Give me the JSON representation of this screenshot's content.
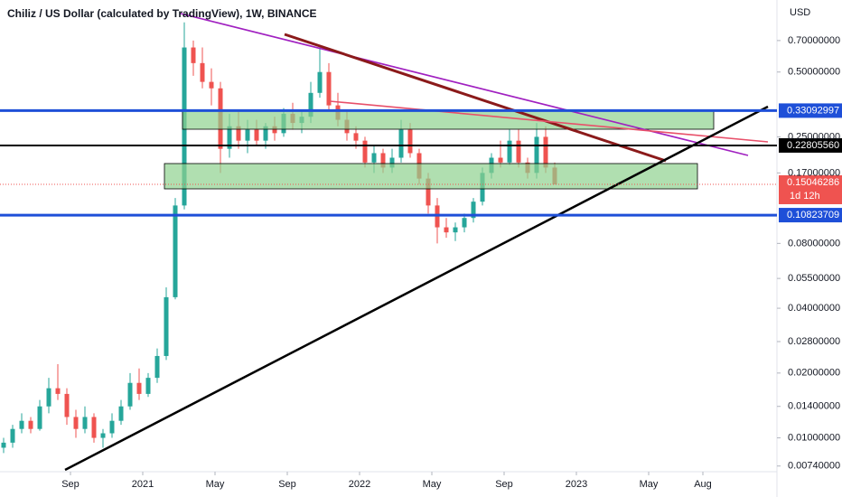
{
  "chart_data": {
    "type": "candlestick",
    "title": "Chiliz / US Dollar (calculated by TradingView), 1W, BINANCE",
    "y_axis_label": "USD",
    "log_scale": true,
    "up_color": "#26a69a",
    "down_color": "#ef5350",
    "x": [
      4.3,
      4.8,
      5.3,
      5.8,
      6.3,
      6.8,
      7.3,
      7.8,
      8.3,
      8.8,
      9.3,
      9.8,
      10.3,
      10.8,
      11.3,
      11.8,
      12.3,
      12.8,
      13.3,
      13.8,
      14.3,
      14.8,
      15.3,
      15.8,
      16.3,
      16.8,
      17.3,
      17.8,
      18.3,
      18.8,
      19.3,
      19.8,
      20.3,
      20.8,
      21.3,
      21.8,
      22.3,
      22.8,
      23.3,
      23.8,
      24.3,
      24.8,
      25.3,
      25.8,
      26.3,
      26.8,
      27.3,
      27.8,
      28.3,
      28.8,
      29.3,
      29.8,
      30.3,
      30.8,
      31.3,
      31.8,
      32.3,
      32.8,
      33.3,
      33.8,
      34.3,
      34.8
    ],
    "open": [
      0.009,
      0.0095,
      0.011,
      0.012,
      0.011,
      0.014,
      0.017,
      0.016,
      0.0125,
      0.011,
      0.0125,
      0.01,
      0.0105,
      0.012,
      0.014,
      0.018,
      0.016,
      0.019,
      0.024,
      0.045,
      0.12,
      0.65,
      0.55,
      0.45,
      0.42,
      0.22,
      0.28,
      0.24,
      0.27,
      0.24,
      0.28,
      0.26,
      0.32,
      0.29,
      0.31,
      0.4,
      0.5,
      0.35,
      0.3,
      0.26,
      0.24,
      0.19,
      0.21,
      0.18,
      0.2,
      0.27,
      0.21,
      0.16,
      0.12,
      0.095,
      0.09,
      0.095,
      0.105,
      0.125,
      0.17,
      0.2,
      0.19,
      0.24,
      0.19,
      0.17,
      0.25,
      0.18
    ],
    "high": [
      0.01,
      0.0115,
      0.013,
      0.0125,
      0.015,
      0.019,
      0.022,
      0.017,
      0.0135,
      0.014,
      0.013,
      0.011,
      0.013,
      0.015,
      0.02,
      0.021,
      0.02,
      0.026,
      0.05,
      0.13,
      0.85,
      0.7,
      0.65,
      0.52,
      0.45,
      0.32,
      0.33,
      0.3,
      0.3,
      0.29,
      0.31,
      0.34,
      0.36,
      0.33,
      0.45,
      0.65,
      0.55,
      0.4,
      0.33,
      0.28,
      0.25,
      0.23,
      0.22,
      0.22,
      0.3,
      0.29,
      0.22,
      0.17,
      0.13,
      0.105,
      0.1,
      0.11,
      0.13,
      0.18,
      0.21,
      0.24,
      0.27,
      0.27,
      0.2,
      0.29,
      0.28,
      0.19
    ],
    "low": [
      0.0085,
      0.009,
      0.0105,
      0.0105,
      0.0108,
      0.013,
      0.015,
      0.0115,
      0.01,
      0.0105,
      0.0095,
      0.009,
      0.01,
      0.0115,
      0.0135,
      0.015,
      0.0155,
      0.018,
      0.023,
      0.044,
      0.115,
      0.48,
      0.42,
      0.35,
      0.17,
      0.2,
      0.22,
      0.21,
      0.23,
      0.22,
      0.24,
      0.25,
      0.27,
      0.26,
      0.29,
      0.38,
      0.33,
      0.28,
      0.24,
      0.22,
      0.18,
      0.17,
      0.17,
      0.17,
      0.19,
      0.2,
      0.15,
      0.11,
      0.08,
      0.085,
      0.082,
      0.09,
      0.1,
      0.12,
      0.16,
      0.18,
      0.185,
      0.18,
      0.16,
      0.16,
      0.17,
      0.15
    ],
    "close": [
      0.0095,
      0.011,
      0.012,
      0.011,
      0.014,
      0.017,
      0.016,
      0.0125,
      0.011,
      0.0125,
      0.01,
      0.0105,
      0.012,
      0.014,
      0.018,
      0.016,
      0.019,
      0.024,
      0.045,
      0.12,
      0.65,
      0.55,
      0.45,
      0.42,
      0.22,
      0.28,
      0.24,
      0.27,
      0.24,
      0.28,
      0.26,
      0.32,
      0.29,
      0.31,
      0.4,
      0.5,
      0.35,
      0.3,
      0.26,
      0.24,
      0.19,
      0.21,
      0.18,
      0.2,
      0.27,
      0.21,
      0.16,
      0.12,
      0.095,
      0.09,
      0.095,
      0.105,
      0.125,
      0.17,
      0.2,
      0.19,
      0.24,
      0.19,
      0.17,
      0.25,
      0.18,
      0.1505
    ],
    "xlim": [
      4.1,
      47.1
    ],
    "xticks": [
      {
        "value": 8,
        "label": "Sep"
      },
      {
        "value": 12,
        "label": "2021"
      },
      {
        "value": 16,
        "label": "May"
      },
      {
        "value": 20,
        "label": "Sep"
      },
      {
        "value": 24,
        "label": "2022"
      },
      {
        "value": 28,
        "label": "May"
      },
      {
        "value": 32,
        "label": "Sep"
      },
      {
        "value": 36,
        "label": "2023"
      },
      {
        "value": 40,
        "label": "May"
      },
      {
        "value": 43,
        "label": "Aug"
      }
    ],
    "ylim": [
      0.0071,
      1.08
    ],
    "yticks": [
      {
        "value": 0.7,
        "label": "0.70000000"
      },
      {
        "value": 0.5,
        "label": "0.50000000"
      },
      {
        "value": 0.25,
        "label": "0.25000000"
      },
      {
        "value": 0.17,
        "label": "0.17000000"
      },
      {
        "value": 0.08,
        "label": "0.08000000"
      },
      {
        "value": 0.055,
        "label": "0.05500000"
      },
      {
        "value": 0.04,
        "label": "0.04000000"
      },
      {
        "value": 0.028,
        "label": "0.02800000"
      },
      {
        "value": 0.02,
        "label": "0.02000000"
      },
      {
        "value": 0.014,
        "label": "0.01400000"
      },
      {
        "value": 0.01,
        "label": "0.01000000"
      },
      {
        "value": 0.0074,
        "label": "0.00740000"
      }
    ],
    "price_lines": [
      {
        "value": 0.33092997,
        "color": "#1e4fd8"
      },
      {
        "value": 0.2280556,
        "label": "0.22805560",
        "color": "#000000"
      },
      {
        "value": 0.10823709,
        "color": "#1e4fd8"
      }
    ],
    "last_price": {
      "value": 0.15046286,
      "label": "0.15046286",
      "countdown": "1d 12h",
      "color": "#ef5350"
    }
  }
}
